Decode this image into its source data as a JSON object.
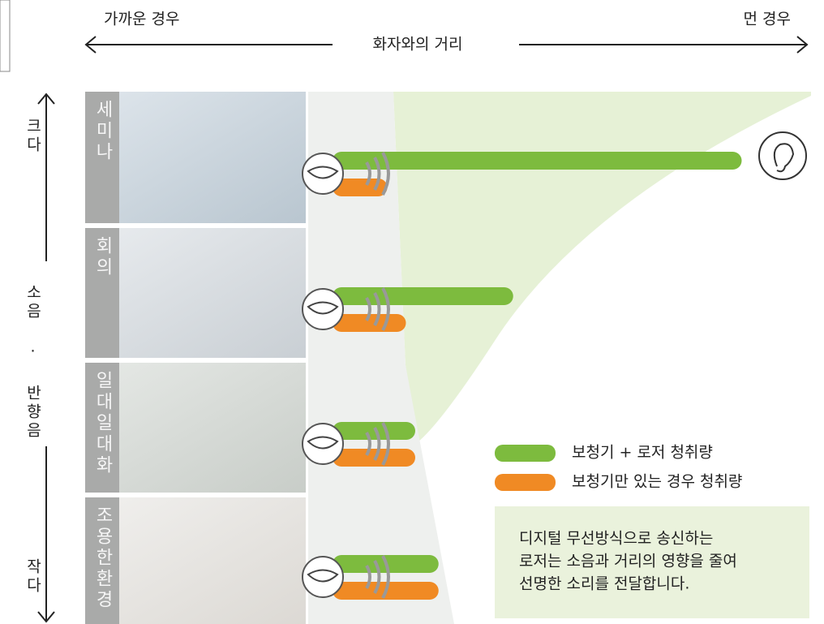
{
  "chart_data": {
    "type": "bar",
    "orientation": "horizontal",
    "xlabel": "화자와의 거리",
    "x_near_label": "가까운 경우",
    "x_far_label": "먼 경우",
    "ylabel": "소음 · 반향음",
    "y_top_label": "크다",
    "y_bottom_label": "작다",
    "categories": [
      "세미나",
      "회의",
      "일대일대화",
      "조용한환경"
    ],
    "xlim": [
      0,
      100
    ],
    "series": [
      {
        "name": "보청기 + 로저 청취량",
        "color": "#7dbb3e",
        "values": [
          86,
          37,
          16,
          21
        ]
      },
      {
        "name": "보청기만 있는 경우 청취량",
        "color": "#f08a24",
        "values": [
          10,
          14,
          16,
          21
        ]
      }
    ],
    "description": [
      "디지털 무선방식으로 송신하는",
      "로저는 소음과 거리의 영향을 줄여",
      "선명한 소리를 전달합니다."
    ]
  }
}
